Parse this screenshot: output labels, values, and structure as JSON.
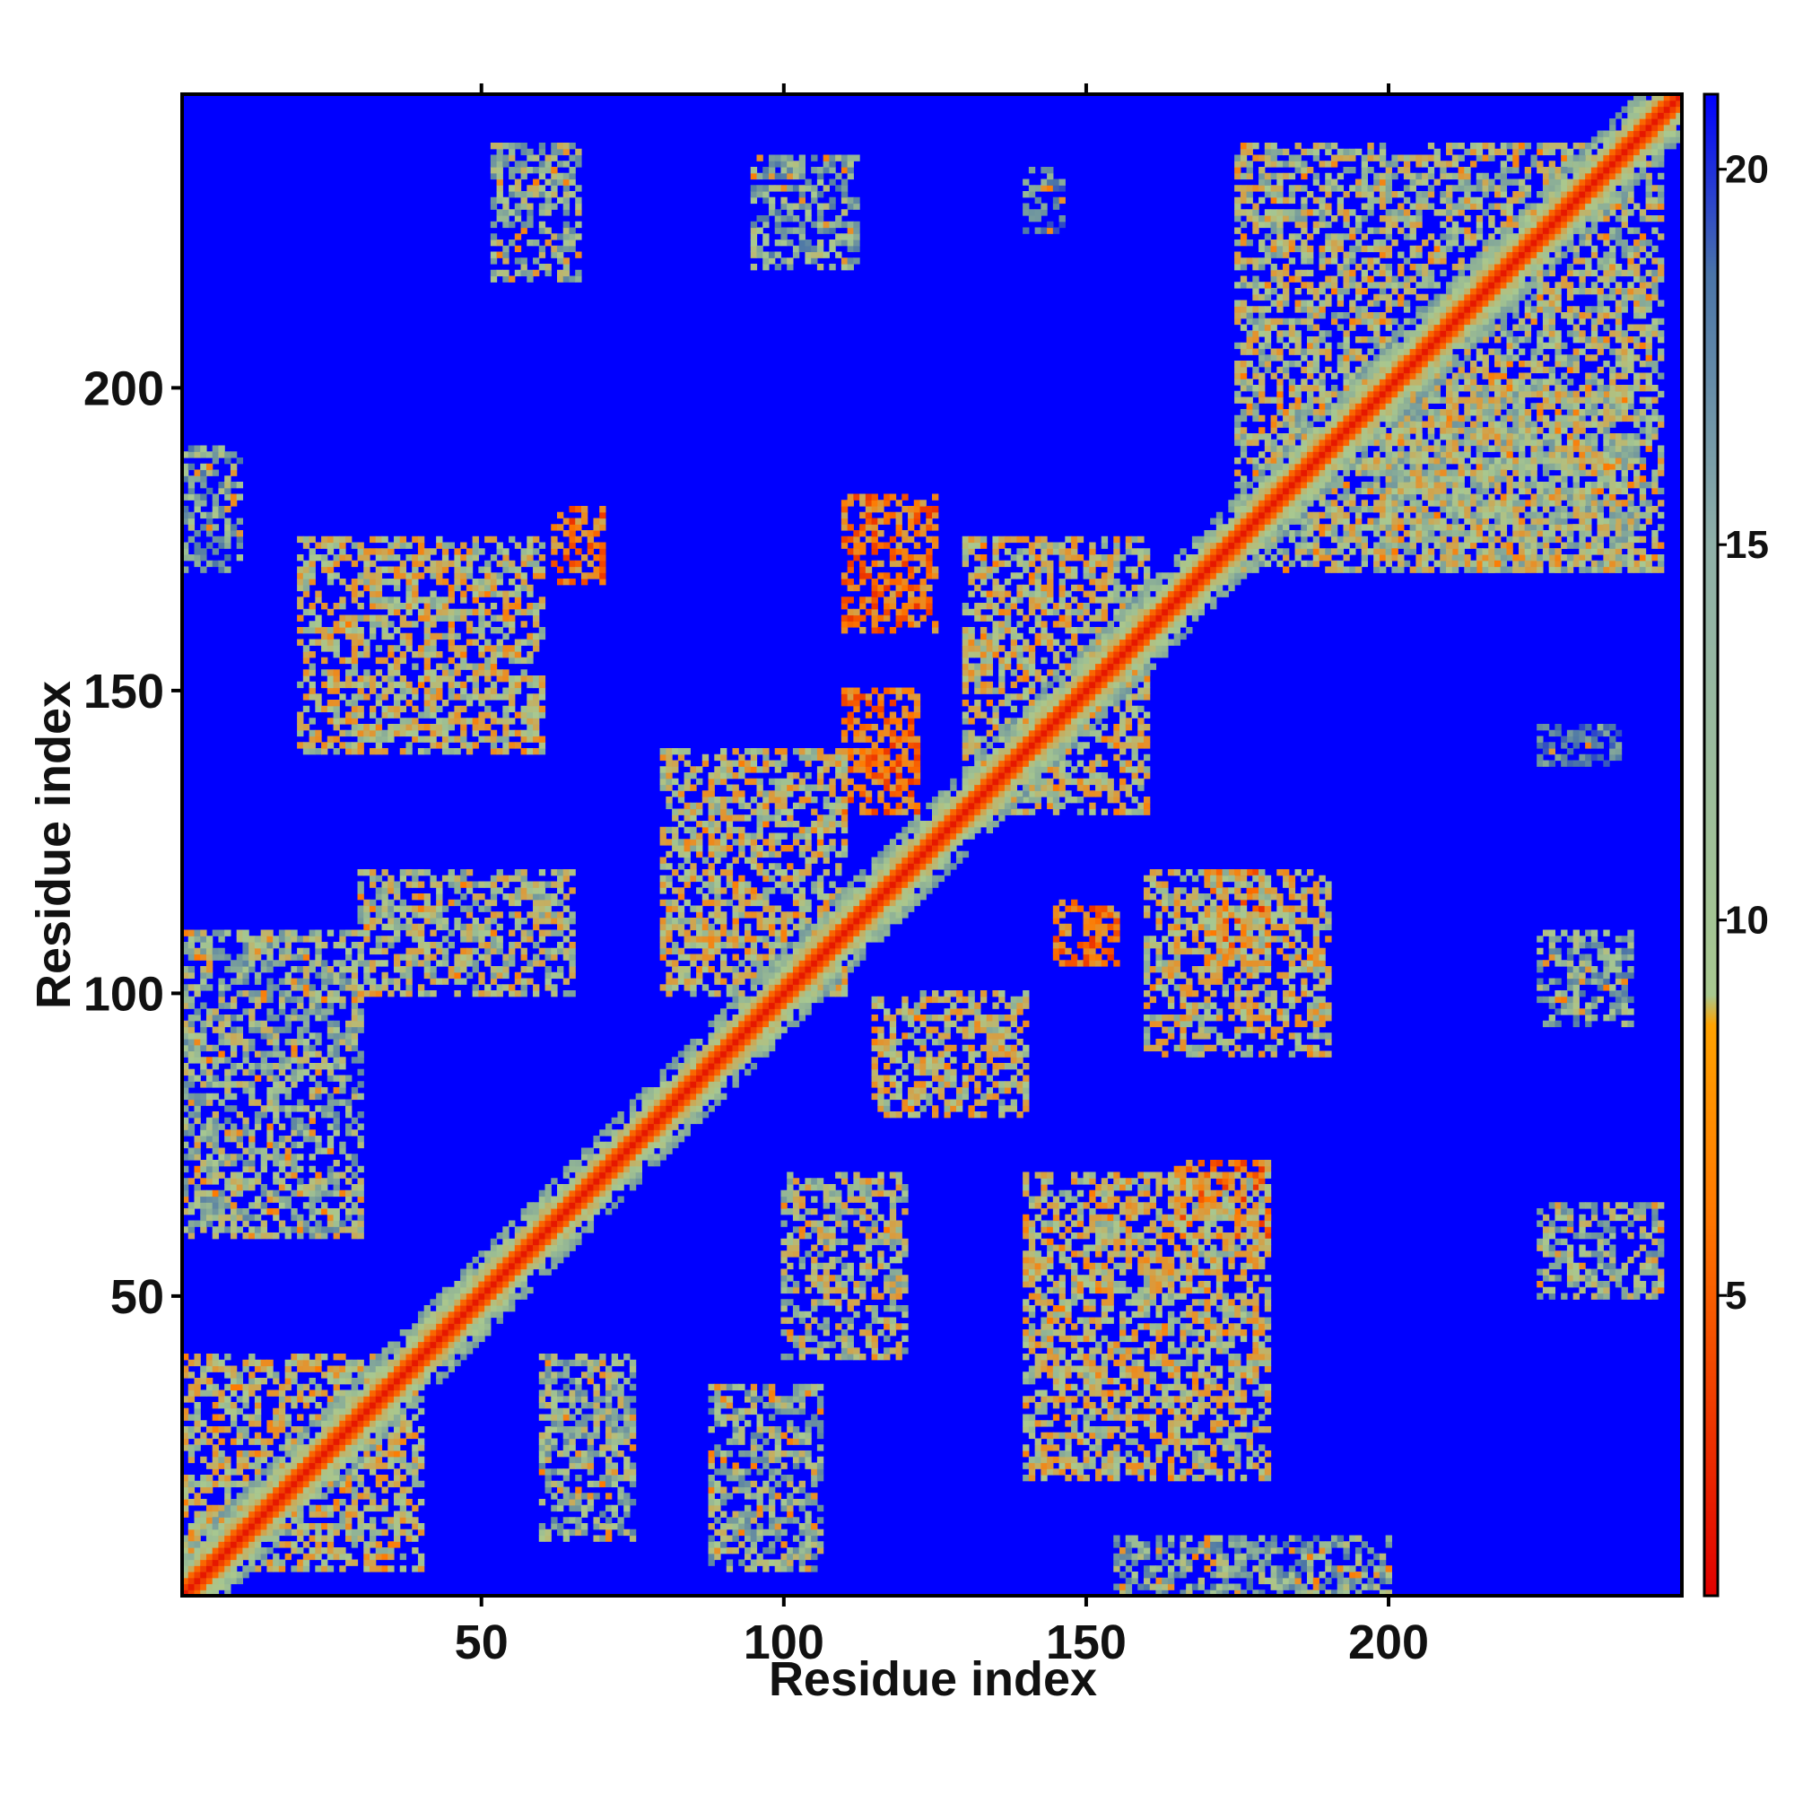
{
  "chart_data": {
    "type": "heatmap",
    "title": "",
    "xlabel": "Residue index",
    "ylabel": "Residue index",
    "xlim": [
      1,
      248
    ],
    "ylim": [
      1,
      248
    ],
    "x_ticks": [
      50,
      100,
      150,
      200
    ],
    "y_ticks": [
      50,
      100,
      150,
      200
    ],
    "colorbar": {
      "range": [
        1,
        21
      ],
      "ticks": [
        5,
        10,
        15,
        20
      ],
      "colors": [
        "#e00000",
        "#ff7a00",
        "#a8c890",
        "#4a74a8",
        "#0000ff"
      ]
    },
    "background_value": 21,
    "diagonal": {
      "from": 1,
      "to": 248,
      "value": 2,
      "halo_value": 11
    },
    "contact_regions": [
      {
        "x": [
          52,
          66
        ],
        "y": [
          218,
          240
        ],
        "value": 12
      },
      {
        "x": [
          95,
          112
        ],
        "y": [
          220,
          238
        ],
        "value": 13
      },
      {
        "x": [
          140,
          146
        ],
        "y": [
          226,
          236
        ],
        "value": 15
      },
      {
        "x": [
          175,
          245
        ],
        "y": [
          170,
          240
        ],
        "value": 11
      },
      {
        "x": [
          198,
          240
        ],
        "y": [
          170,
          200
        ],
        "value": 11
      },
      {
        "x": [
          110,
          125
        ],
        "y": [
          160,
          182
        ],
        "value": 6
      },
      {
        "x": [
          62,
          70
        ],
        "y": [
          168,
          180
        ],
        "value": 6
      },
      {
        "x": [
          20,
          60
        ],
        "y": [
          140,
          175
        ],
        "value": 10
      },
      {
        "x": [
          30,
          65
        ],
        "y": [
          100,
          120
        ],
        "value": 11
      },
      {
        "x": [
          110,
          122
        ],
        "y": [
          130,
          150
        ],
        "value": 6
      },
      {
        "x": [
          130,
          160
        ],
        "y": [
          130,
          175
        ],
        "value": 10
      },
      {
        "x": [
          145,
          155
        ],
        "y": [
          105,
          115
        ],
        "value": 6
      },
      {
        "x": [
          170,
          180
        ],
        "y": [
          105,
          120
        ],
        "value": 6
      },
      {
        "x": [
          160,
          190
        ],
        "y": [
          90,
          120
        ],
        "value": 10
      },
      {
        "x": [
          80,
          110
        ],
        "y": [
          100,
          140
        ],
        "value": 10
      },
      {
        "x": [
          115,
          140
        ],
        "y": [
          80,
          100
        ],
        "value": 10
      },
      {
        "x": [
          165,
          180
        ],
        "y": [
          60,
          72
        ],
        "value": 6
      },
      {
        "x": [
          140,
          180
        ],
        "y": [
          20,
          70
        ],
        "value": 10
      },
      {
        "x": [
          100,
          120
        ],
        "y": [
          40,
          70
        ],
        "value": 11
      },
      {
        "x": [
          60,
          75
        ],
        "y": [
          10,
          40
        ],
        "value": 12
      },
      {
        "x": [
          88,
          106
        ],
        "y": [
          5,
          35
        ],
        "value": 12
      },
      {
        "x": [
          1,
          40
        ],
        "y": [
          5,
          40
        ],
        "value": 10
      },
      {
        "x": [
          1,
          30
        ],
        "y": [
          60,
          110
        ],
        "value": 12
      },
      {
        "x": [
          1,
          10
        ],
        "y": [
          170,
          190
        ],
        "value": 13
      },
      {
        "x": [
          225,
          245
        ],
        "y": [
          50,
          65
        ],
        "value": 12
      },
      {
        "x": [
          225,
          240
        ],
        "y": [
          95,
          110
        ],
        "value": 13
      },
      {
        "x": [
          225,
          238
        ],
        "y": [
          138,
          144
        ],
        "value": 15
      },
      {
        "x": [
          155,
          200
        ],
        "y": [
          1,
          10
        ],
        "value": 13
      }
    ]
  }
}
